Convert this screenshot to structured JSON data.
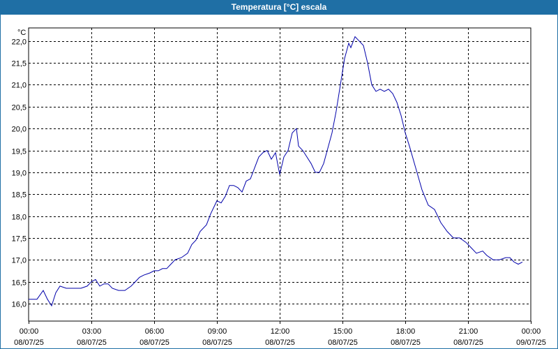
{
  "window": {
    "title": "Temperatura [°C] escala"
  },
  "chart_data": {
    "type": "line",
    "title": "Temperatura [°C] escala",
    "ylabel": "°C",
    "xlabel": "",
    "ylim": [
      15.6,
      22.3
    ],
    "xlim": [
      0,
      24
    ],
    "grid": true,
    "line_color": "#0000aa",
    "y_ticks": [
      "16,0",
      "16,5",
      "17,0",
      "17,5",
      "18,0",
      "18,5",
      "19,0",
      "19,5",
      "20,0",
      "20,5",
      "21,0",
      "21,5",
      "22,0"
    ],
    "y_tick_values": [
      16.0,
      16.5,
      17.0,
      17.5,
      18.0,
      18.5,
      19.0,
      19.5,
      20.0,
      20.5,
      21.0,
      21.5,
      22.0
    ],
    "x_ticks": [
      {
        "time": "00:00",
        "date": "08/07/25",
        "x": 0
      },
      {
        "time": "03:00",
        "date": "08/07/25",
        "x": 3
      },
      {
        "time": "06:00",
        "date": "08/07/25",
        "x": 6
      },
      {
        "time": "09:00",
        "date": "08/07/25",
        "x": 9
      },
      {
        "time": "12:00",
        "date": "08/07/25",
        "x": 12
      },
      {
        "time": "15:00",
        "date": "08/07/25",
        "x": 15
      },
      {
        "time": "18:00",
        "date": "08/07/25",
        "x": 18
      },
      {
        "time": "21:00",
        "date": "08/07/25",
        "x": 21
      },
      {
        "time": "00:00",
        "date": "09/07/25",
        "x": 24
      }
    ],
    "series": [
      {
        "x": [
          0,
          0.4,
          0.7,
          0.9,
          1.1,
          1.3,
          1.5,
          1.8,
          2.1,
          2.5,
          2.8,
          3.0,
          3.2,
          3.4,
          3.6,
          3.8,
          4.0,
          4.3,
          4.6,
          4.9,
          5.1,
          5.3,
          5.5,
          5.8,
          6.0,
          6.2,
          6.4,
          6.6,
          6.8,
          7.0,
          7.3,
          7.6,
          7.8,
          8.0,
          8.2,
          8.5,
          8.7,
          9.0,
          9.2,
          9.4,
          9.6,
          9.8,
          10.0,
          10.2,
          10.4,
          10.6,
          10.8,
          11.0,
          11.2,
          11.4,
          11.6,
          11.8,
          12.0,
          12.2,
          12.4,
          12.6,
          12.8,
          12.9,
          13.1,
          13.3,
          13.5,
          13.7,
          13.9,
          14.1,
          14.3,
          14.5,
          14.7,
          14.9,
          15.1,
          15.3,
          15.4,
          15.6,
          15.8,
          16.0,
          16.2,
          16.4,
          16.6,
          16.8,
          17.0,
          17.2,
          17.4,
          17.6,
          17.8,
          18.0,
          18.2,
          18.5,
          18.8,
          19.1,
          19.4,
          19.7,
          20.0,
          20.3,
          20.6,
          20.9,
          21.1,
          21.4,
          21.7,
          21.9,
          22.2,
          22.5,
          22.8,
          23.0,
          23.2,
          23.4,
          23.6
        ],
        "y": [
          16.1,
          16.1,
          16.3,
          16.1,
          15.95,
          16.25,
          16.4,
          16.35,
          16.35,
          16.35,
          16.4,
          16.5,
          16.55,
          16.4,
          16.45,
          16.45,
          16.35,
          16.3,
          16.3,
          16.4,
          16.5,
          16.6,
          16.65,
          16.7,
          16.75,
          16.75,
          16.8,
          16.8,
          16.9,
          17.0,
          17.05,
          17.15,
          17.35,
          17.45,
          17.65,
          17.8,
          18.05,
          18.35,
          18.3,
          18.45,
          18.7,
          18.7,
          18.65,
          18.55,
          18.8,
          18.85,
          19.1,
          19.35,
          19.45,
          19.5,
          19.3,
          19.45,
          18.95,
          19.35,
          19.5,
          19.9,
          20.0,
          19.6,
          19.5,
          19.35,
          19.2,
          19.0,
          19.0,
          19.2,
          19.55,
          19.9,
          20.4,
          21.0,
          21.6,
          21.95,
          21.85,
          22.1,
          22.0,
          21.9,
          21.5,
          21.0,
          20.85,
          20.9,
          20.85,
          20.9,
          20.8,
          20.6,
          20.3,
          19.9,
          19.6,
          19.1,
          18.6,
          18.25,
          18.15,
          17.85,
          17.65,
          17.5,
          17.5,
          17.4,
          17.3,
          17.15,
          17.2,
          17.1,
          17.0,
          17.0,
          17.05,
          17.05,
          16.95,
          16.9,
          16.95
        ]
      }
    ]
  }
}
